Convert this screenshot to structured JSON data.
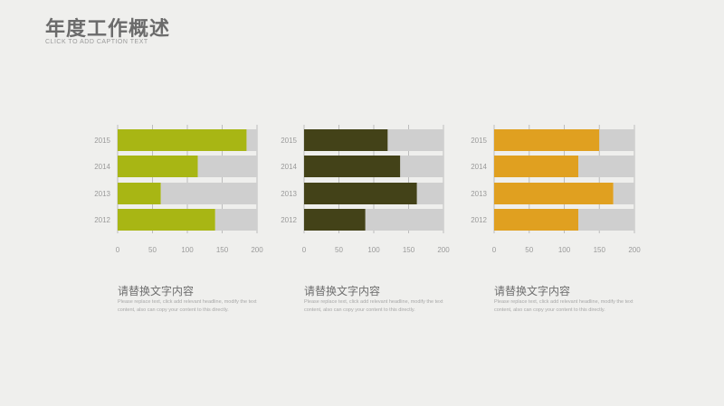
{
  "header": {
    "title": "年度工作概述",
    "subtitle": "CLICK TO ADD CAPTION TEXT"
  },
  "colors": {
    "panel1": "#a8b614",
    "panel2": "#434218",
    "panel3": "#e0a020",
    "remainder": "#cfcfcf",
    "axis": "#bdbdbd",
    "tick_text": "#9a9a9a"
  },
  "chart_data": [
    {
      "type": "bar",
      "orientation": "horizontal",
      "stacked": true,
      "categories": [
        "2015",
        "2014",
        "2013",
        "2012"
      ],
      "xlim": [
        0,
        200
      ],
      "xticks": [
        0,
        50,
        100,
        150,
        200
      ],
      "series": [
        {
          "values": [
            185,
            115,
            62,
            140
          ]
        },
        {
          "values": [
            15,
            85,
            138,
            60
          ]
        }
      ],
      "grid": true
    },
    {
      "type": "bar",
      "orientation": "horizontal",
      "stacked": true,
      "categories": [
        "2015",
        "2014",
        "2013",
        "2012"
      ],
      "xlim": [
        0,
        200
      ],
      "xticks": [
        0,
        50,
        100,
        150,
        200
      ],
      "series": [
        {
          "values": [
            120,
            138,
            162,
            88
          ]
        },
        {
          "values": [
            80,
            62,
            38,
            112
          ]
        }
      ],
      "grid": true
    },
    {
      "type": "bar",
      "orientation": "horizontal",
      "stacked": true,
      "categories": [
        "2015",
        "2014",
        "2013",
        "2012"
      ],
      "xlim": [
        0,
        200
      ],
      "xticks": [
        0,
        50,
        100,
        150,
        200
      ],
      "series": [
        {
          "values": [
            150,
            120,
            170,
            120
          ]
        },
        {
          "values": [
            50,
            80,
            30,
            80
          ]
        }
      ],
      "grid": true
    }
  ],
  "captions": [
    {
      "title": "请替换文字内容",
      "body": "Please replace text, click add relevant headline, modify the text content, also can copy your content to this directly."
    },
    {
      "title": "请替换文字内容",
      "body": "Please replace text, click add relevant headline, modify the text content, also can copy your content to this directly."
    },
    {
      "title": "请替换文字内容",
      "body": "Please replace text, click add relevant headline, modify the text content, also can copy your content to this directly."
    }
  ]
}
